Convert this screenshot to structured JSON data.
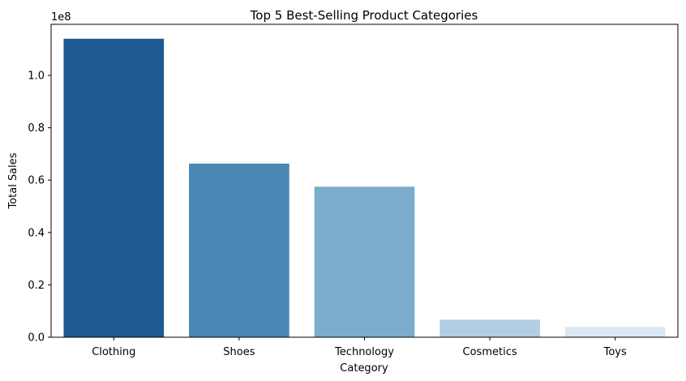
{
  "chart_data": {
    "type": "bar",
    "title": "Top 5 Best-Selling Product Categories",
    "xlabel": "Category",
    "ylabel": "Total Sales",
    "y_offset_label": "1e8",
    "categories": [
      "Clothing",
      "Shoes",
      "Technology",
      "Cosmetics",
      "Toys"
    ],
    "values": [
      114000000,
      66300000,
      57500000,
      6700000,
      3900000
    ],
    "colors": [
      "#1f5a94",
      "#4a87b5",
      "#7baccc",
      "#b3cee3",
      "#dae8f4"
    ],
    "ylim": [
      0,
      119500000
    ],
    "ytick_values": [
      0,
      20000000,
      40000000,
      60000000,
      80000000,
      100000000
    ],
    "ytick_labels": [
      "0.0",
      "0.2",
      "0.4",
      "0.6",
      "0.8",
      "1.0"
    ],
    "grid": false,
    "legend": "none"
  }
}
